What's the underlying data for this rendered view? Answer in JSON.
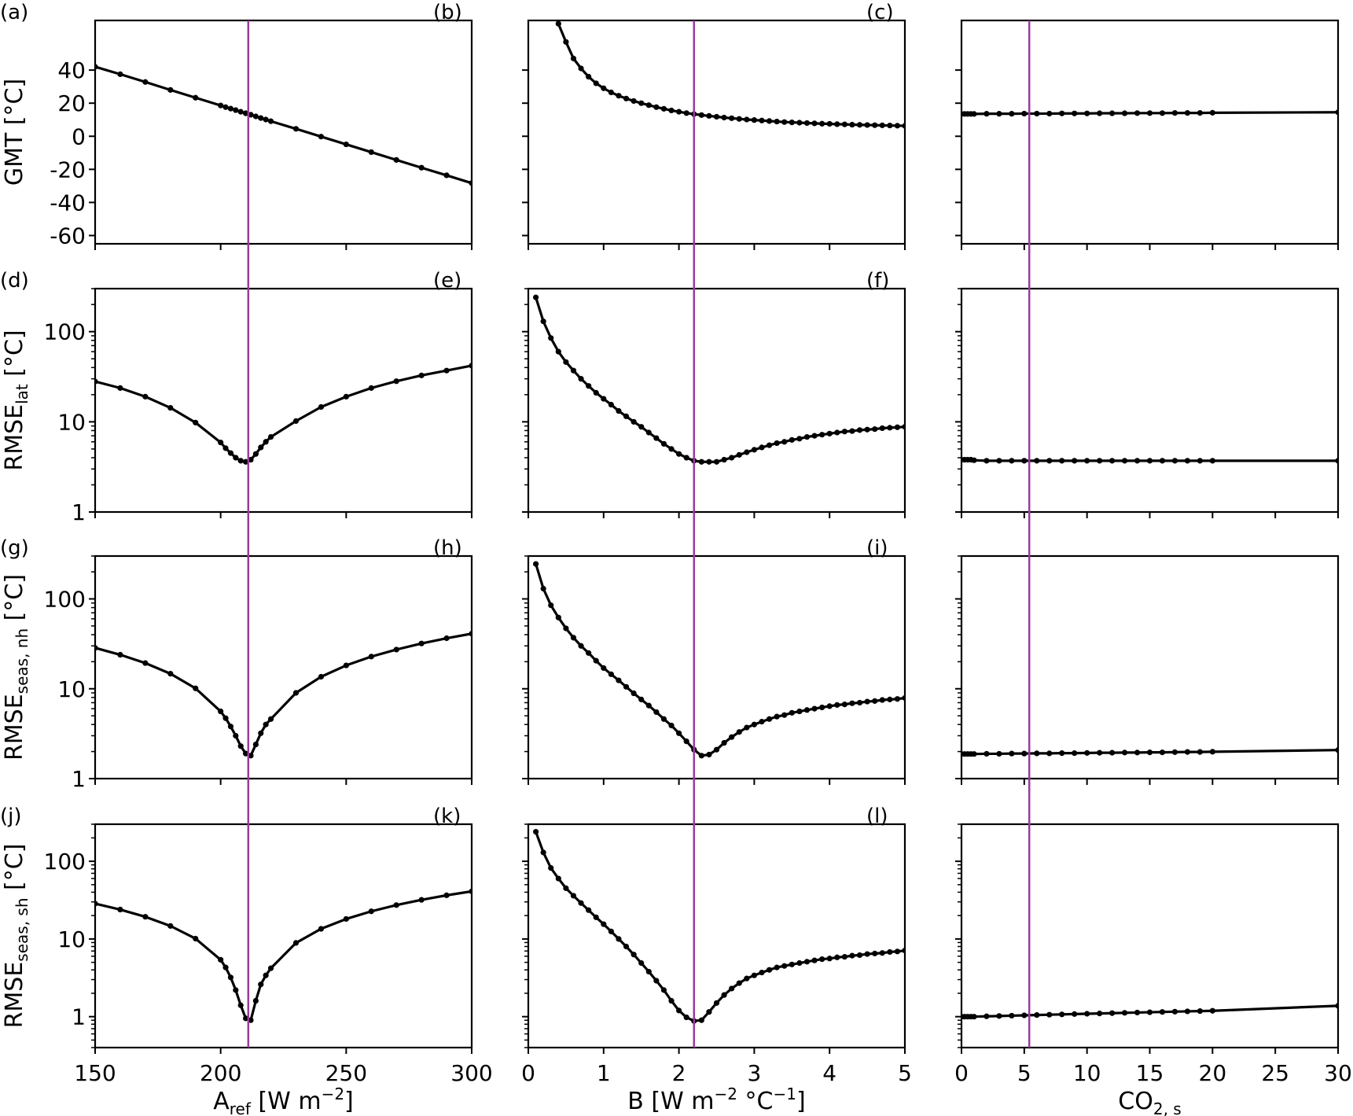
{
  "figure": {
    "panel_letters": [
      "(a)",
      "(b)",
      "(c)",
      "(d)",
      "(e)",
      "(f)",
      "(g)",
      "(h)",
      "(i)",
      "(j)",
      "(k)",
      "(l)"
    ],
    "row_ylabels": [
      {
        "main": "GMT [°C]",
        "sub": ""
      },
      {
        "main": "RMSE",
        "sub": "lat",
        "unit": " [°C]"
      },
      {
        "main": "RMSE",
        "sub": "seas, nh",
        "unit": " [°C]"
      },
      {
        "main": "RMSE",
        "sub": "seas, sh",
        "unit": " [°C]"
      }
    ],
    "col_xlabels": [
      {
        "parts": [
          [
            "A",
            ""
          ],
          [
            "ref",
            "sub"
          ],
          [
            " [W m",
            ""
          ],
          [
            "−2",
            "sup"
          ],
          [
            "]",
            ""
          ]
        ]
      },
      {
        "parts": [
          [
            "B [W m",
            ""
          ],
          [
            "−2",
            "sup"
          ],
          [
            " °C",
            ""
          ],
          [
            "−1",
            "sup"
          ],
          [
            "]",
            ""
          ]
        ]
      },
      {
        "parts": [
          [
            "CO",
            ""
          ],
          [
            "2, s",
            "sub"
          ]
        ]
      }
    ],
    "line_color": "#000000",
    "marker_color": "#000000",
    "reference_line_color": "#9b3a9e",
    "reference_values": [
      211,
      2.2,
      5.4
    ]
  },
  "chart_data": [
    {
      "panel": "(a)",
      "type": "line",
      "x": [
        150,
        160,
        170,
        180,
        190,
        200,
        202,
        204,
        206,
        208,
        210,
        212,
        214,
        216,
        218,
        220,
        230,
        240,
        250,
        260,
        270,
        280,
        290,
        300
      ],
      "y": [
        42,
        37.5,
        32.8,
        28,
        23.3,
        18.6,
        17.6,
        16.7,
        15.8,
        14.8,
        13.9,
        13,
        12,
        11,
        10.1,
        9.1,
        4.5,
        -0.2,
        -4.9,
        -9.6,
        -14.3,
        -19,
        -23.6,
        -28.3
      ],
      "xlim": [
        150,
        300
      ],
      "ylim": [
        -65,
        70
      ],
      "yscale": "linear",
      "yticks": [
        -60,
        -40,
        -20,
        0,
        20,
        40
      ],
      "ytick_labels": [
        "-60",
        "-40",
        "-20",
        "0",
        "20",
        "40"
      ]
    },
    {
      "panel": "(b)",
      "type": "line",
      "x": [
        0.3,
        0.4,
        0.5,
        0.6,
        0.7,
        0.8,
        0.9,
        1.0,
        1.1,
        1.2,
        1.3,
        1.4,
        1.5,
        1.6,
        1.7,
        1.8,
        1.9,
        2.0,
        2.1,
        2.2,
        2.3,
        2.4,
        2.5,
        2.6,
        2.7,
        2.8,
        2.9,
        3.0,
        3.1,
        3.2,
        3.3,
        3.4,
        3.5,
        3.6,
        3.7,
        3.8,
        3.9,
        4.0,
        4.1,
        4.2,
        4.3,
        4.4,
        4.5,
        4.6,
        4.7,
        4.8,
        4.9,
        5.0
      ],
      "y": [
        82,
        68,
        57,
        47,
        41,
        36,
        32,
        29,
        26.5,
        24.5,
        22.8,
        21.3,
        20,
        18.8,
        17.6,
        16.6,
        15.6,
        14.8,
        14,
        13.4,
        12.8,
        12.3,
        11.8,
        11.3,
        10.9,
        10.5,
        10.1,
        9.8,
        9.5,
        9.2,
        8.9,
        8.6,
        8.4,
        8.2,
        8,
        7.8,
        7.6,
        7.5,
        7.3,
        7.2,
        7,
        6.9,
        6.8,
        6.7,
        6.6,
        6.5,
        6.4,
        6.3
      ],
      "xlim": [
        0,
        5
      ],
      "ylim": [
        -65,
        70
      ],
      "yscale": "linear",
      "yticks": [
        -60,
        -40,
        -20,
        0,
        20,
        40
      ],
      "ytick_labels": []
    },
    {
      "panel": "(c)",
      "type": "line",
      "x": [
        0,
        0.25,
        0.5,
        0.75,
        1,
        2,
        3,
        4,
        5,
        6,
        7,
        8,
        9,
        10,
        11,
        12,
        13,
        14,
        15,
        16,
        17,
        18,
        19,
        20,
        30
      ],
      "y": [
        13.5,
        13.5,
        13.5,
        13.5,
        13.5,
        13.6,
        13.6,
        13.6,
        13.7,
        13.7,
        13.7,
        13.8,
        13.8,
        13.8,
        13.9,
        13.9,
        13.9,
        14,
        14,
        14,
        14.1,
        14.1,
        14.1,
        14.2,
        14.5
      ],
      "xlim": [
        0,
        30
      ],
      "ylim": [
        -65,
        70
      ],
      "yscale": "linear",
      "yticks": [
        -60,
        -40,
        -20,
        0,
        20,
        40
      ],
      "ytick_labels": []
    },
    {
      "panel": "(d)",
      "type": "line",
      "x": [
        150,
        160,
        170,
        180,
        190,
        200,
        202,
        204,
        206,
        208,
        210,
        212,
        214,
        216,
        218,
        220,
        230,
        240,
        250,
        260,
        270,
        280,
        290,
        300
      ],
      "y": [
        28,
        23.7,
        19,
        14.3,
        9.8,
        5.9,
        5.1,
        4.5,
        4,
        3.7,
        3.6,
        3.8,
        4.4,
        5.2,
        6,
        6.8,
        10.2,
        14.6,
        19,
        23.7,
        28.2,
        32.7,
        37,
        42
      ],
      "xlim": [
        150,
        300
      ],
      "ylim": [
        1,
        300
      ],
      "yscale": "log",
      "yticks": [
        1,
        10,
        100
      ],
      "ytick_labels": [
        "1",
        "10",
        "100"
      ]
    },
    {
      "panel": "(e)",
      "type": "line",
      "x": [
        0.1,
        0.2,
        0.3,
        0.4,
        0.5,
        0.6,
        0.7,
        0.8,
        0.9,
        1.0,
        1.1,
        1.2,
        1.3,
        1.4,
        1.5,
        1.6,
        1.7,
        1.8,
        1.9,
        2.0,
        2.1,
        2.2,
        2.3,
        2.4,
        2.5,
        2.6,
        2.7,
        2.8,
        2.9,
        3.0,
        3.1,
        3.2,
        3.3,
        3.4,
        3.5,
        3.6,
        3.7,
        3.8,
        3.9,
        4.0,
        4.1,
        4.2,
        4.3,
        4.4,
        4.5,
        4.6,
        4.7,
        4.8,
        4.9,
        5.0
      ],
      "y": [
        240,
        130,
        85,
        60,
        46,
        37,
        30,
        25,
        21,
        18,
        15.5,
        13.2,
        11.5,
        10,
        8.8,
        7.6,
        6.6,
        5.7,
        5,
        4.4,
        4,
        3.7,
        3.6,
        3.6,
        3.6,
        3.8,
        4,
        4.3,
        4.6,
        4.9,
        5.2,
        5.5,
        5.8,
        6,
        6.3,
        6.5,
        6.8,
        7,
        7.2,
        7.4,
        7.6,
        7.8,
        7.9,
        8.1,
        8.2,
        8.3,
        8.5,
        8.6,
        8.7,
        8.8
      ],
      "xlim": [
        0,
        5
      ],
      "ylim": [
        1,
        300
      ],
      "yscale": "log",
      "yticks": [
        1,
        10,
        100
      ],
      "ytick_labels": []
    },
    {
      "panel": "(f)",
      "type": "line",
      "x": [
        0,
        0.25,
        0.5,
        0.75,
        1,
        2,
        3,
        4,
        5,
        6,
        7,
        8,
        9,
        10,
        11,
        12,
        13,
        14,
        15,
        16,
        17,
        18,
        19,
        20,
        30
      ],
      "y": [
        3.8,
        3.8,
        3.8,
        3.8,
        3.75,
        3.7,
        3.7,
        3.7,
        3.7,
        3.7,
        3.7,
        3.7,
        3.7,
        3.7,
        3.7,
        3.7,
        3.7,
        3.7,
        3.7,
        3.7,
        3.7,
        3.7,
        3.7,
        3.7,
        3.7
      ],
      "xlim": [
        0,
        30
      ],
      "ylim": [
        1,
        300
      ],
      "yscale": "log",
      "yticks": [
        1,
        10,
        100
      ],
      "ytick_labels": []
    },
    {
      "panel": "(g)",
      "type": "line",
      "x": [
        150,
        160,
        170,
        180,
        190,
        200,
        202,
        204,
        206,
        208,
        210,
        212,
        214,
        216,
        218,
        220,
        230,
        240,
        250,
        260,
        270,
        280,
        290,
        300
      ],
      "y": [
        28.5,
        23.9,
        19.3,
        14.7,
        10.1,
        5.6,
        4.7,
        3.8,
        3,
        2.3,
        1.9,
        1.8,
        2.4,
        3.2,
        4,
        4.6,
        9,
        13.6,
        18.2,
        22.8,
        27.3,
        31.9,
        36.5,
        41
      ],
      "xlim": [
        150,
        300
      ],
      "ylim": [
        1,
        300
      ],
      "yscale": "log",
      "yticks": [
        1,
        10,
        100
      ],
      "ytick_labels": [
        "1",
        "10",
        "100"
      ]
    },
    {
      "panel": "(h)",
      "type": "line",
      "x": [
        0.1,
        0.2,
        0.3,
        0.4,
        0.5,
        0.6,
        0.7,
        0.8,
        0.9,
        1.0,
        1.1,
        1.2,
        1.3,
        1.4,
        1.5,
        1.6,
        1.7,
        1.8,
        1.9,
        2.0,
        2.1,
        2.2,
        2.3,
        2.4,
        2.5,
        2.6,
        2.7,
        2.8,
        2.9,
        3.0,
        3.1,
        3.2,
        3.3,
        3.4,
        3.5,
        3.6,
        3.7,
        3.8,
        3.9,
        4.0,
        4.1,
        4.2,
        4.3,
        4.4,
        4.5,
        4.6,
        4.7,
        4.8,
        4.9,
        5.0
      ],
      "y": [
        245,
        130,
        85,
        62,
        47,
        37,
        30,
        25,
        20.5,
        17,
        14.5,
        12.4,
        10.5,
        8.9,
        7.6,
        6.5,
        5.5,
        4.6,
        3.9,
        3.2,
        2.6,
        2.1,
        1.8,
        1.85,
        2.1,
        2.5,
        2.9,
        3.3,
        3.7,
        4,
        4.3,
        4.6,
        4.9,
        5.1,
        5.4,
        5.6,
        5.8,
        6,
        6.2,
        6.4,
        6.6,
        6.7,
        6.9,
        7,
        7.2,
        7.3,
        7.5,
        7.6,
        7.7,
        7.9
      ],
      "xlim": [
        0,
        5
      ],
      "ylim": [
        1,
        300
      ],
      "yscale": "log",
      "yticks": [
        1,
        10,
        100
      ],
      "ytick_labels": []
    },
    {
      "panel": "(i)",
      "type": "line",
      "x": [
        0,
        0.25,
        0.5,
        0.75,
        1,
        2,
        3,
        4,
        5,
        6,
        7,
        8,
        9,
        10,
        11,
        12,
        13,
        14,
        15,
        16,
        17,
        18,
        19,
        20,
        30
      ],
      "y": [
        1.88,
        1.88,
        1.88,
        1.88,
        1.88,
        1.89,
        1.89,
        1.9,
        1.9,
        1.91,
        1.91,
        1.92,
        1.92,
        1.93,
        1.94,
        1.94,
        1.95,
        1.95,
        1.96,
        1.96,
        1.97,
        1.98,
        1.98,
        1.99,
        2.08
      ],
      "xlim": [
        0,
        30
      ],
      "ylim": [
        1,
        300
      ],
      "yscale": "log",
      "yticks": [
        1,
        10,
        100
      ],
      "ytick_labels": []
    },
    {
      "panel": "(j)",
      "type": "line",
      "x": [
        150,
        160,
        170,
        180,
        190,
        200,
        202,
        204,
        206,
        208,
        210,
        212,
        214,
        216,
        218,
        220,
        230,
        240,
        250,
        260,
        270,
        280,
        290,
        300
      ],
      "y": [
        28.5,
        23.9,
        19.3,
        14.7,
        10.1,
        5.4,
        4.3,
        3.2,
        2.2,
        1.4,
        0.95,
        0.9,
        1.6,
        2.6,
        3.4,
        4.2,
        8.9,
        13.5,
        18.1,
        22.7,
        27.3,
        31.9,
        36.5,
        41
      ],
      "xlim": [
        150,
        300
      ],
      "ylim": [
        0.4,
        300
      ],
      "yscale": "log",
      "yticks": [
        1,
        10,
        100
      ],
      "ytick_labels": [
        "1",
        "10",
        "100"
      ]
    },
    {
      "panel": "(k)",
      "type": "line",
      "x": [
        0.1,
        0.2,
        0.3,
        0.4,
        0.5,
        0.6,
        0.7,
        0.8,
        0.9,
        1.0,
        1.1,
        1.2,
        1.3,
        1.4,
        1.5,
        1.6,
        1.7,
        1.8,
        1.9,
        2.0,
        2.1,
        2.2,
        2.3,
        2.4,
        2.5,
        2.6,
        2.7,
        2.8,
        2.9,
        3.0,
        3.1,
        3.2,
        3.3,
        3.4,
        3.5,
        3.6,
        3.7,
        3.8,
        3.9,
        4.0,
        4.1,
        4.2,
        4.3,
        4.4,
        4.5,
        4.6,
        4.7,
        4.8,
        4.9,
        5.0
      ],
      "y": [
        240,
        130,
        82,
        60,
        45,
        36,
        29,
        23.5,
        19,
        15.5,
        12.5,
        10,
        8,
        6.3,
        4.9,
        3.8,
        2.9,
        2.2,
        1.6,
        1.2,
        0.98,
        0.88,
        0.9,
        1.15,
        1.5,
        1.9,
        2.3,
        2.7,
        3.1,
        3.4,
        3.7,
        4,
        4.3,
        4.5,
        4.7,
        4.9,
        5.1,
        5.3,
        5.5,
        5.6,
        5.8,
        5.9,
        6.1,
        6.2,
        6.4,
        6.5,
        6.6,
        6.8,
        6.9,
        7.1
      ],
      "xlim": [
        0,
        5
      ],
      "ylim": [
        0.4,
        300
      ],
      "yscale": "log",
      "yticks": [
        1,
        10,
        100
      ],
      "ytick_labels": []
    },
    {
      "panel": "(l)",
      "type": "line",
      "x": [
        0,
        0.25,
        0.5,
        0.75,
        1,
        2,
        3,
        4,
        5,
        6,
        7,
        8,
        9,
        10,
        11,
        12,
        13,
        14,
        15,
        16,
        17,
        18,
        19,
        20,
        30
      ],
      "y": [
        1.0,
        1.0,
        1.0,
        1.0,
        1.0,
        1.01,
        1.02,
        1.03,
        1.04,
        1.05,
        1.06,
        1.07,
        1.08,
        1.09,
        1.1,
        1.11,
        1.12,
        1.13,
        1.14,
        1.15,
        1.16,
        1.17,
        1.18,
        1.19,
        1.38
      ],
      "xlim": [
        0,
        30
      ],
      "ylim": [
        0.4,
        300
      ],
      "yscale": "log",
      "yticks": [
        1,
        10,
        100
      ],
      "ytick_labels": []
    }
  ],
  "x_axes": [
    {
      "ticks": [
        150,
        200,
        250,
        300
      ],
      "tick_labels": [
        "150",
        "200",
        "250",
        "300"
      ]
    },
    {
      "ticks": [
        0,
        1,
        2,
        3,
        4,
        5
      ],
      "tick_labels": [
        "0",
        "1",
        "2",
        "3",
        "4",
        "5"
      ]
    },
    {
      "ticks": [
        0,
        5,
        10,
        15,
        20,
        25,
        30
      ],
      "tick_labels": [
        "0",
        "5",
        "10",
        "15",
        "20",
        "25",
        "30"
      ]
    }
  ]
}
